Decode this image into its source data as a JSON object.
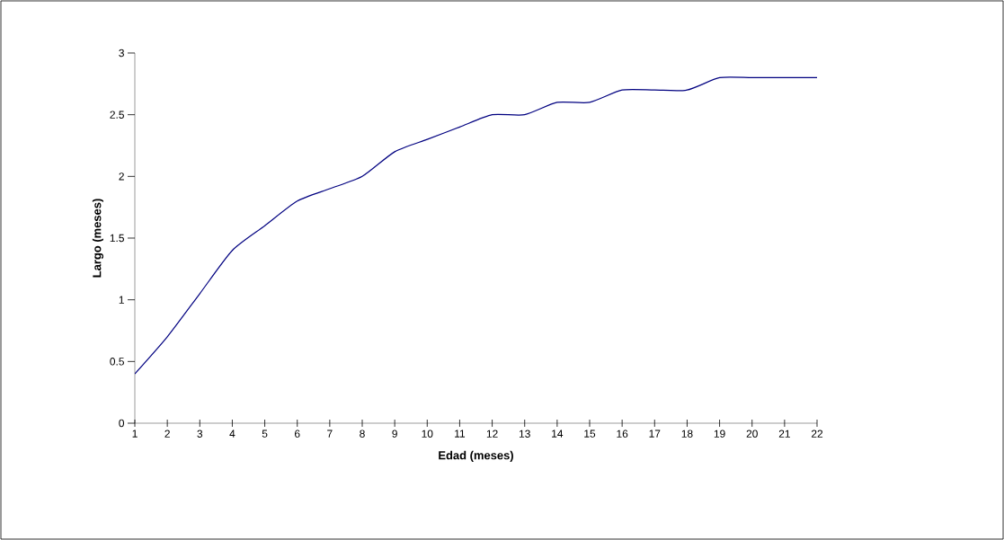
{
  "chart_data": {
    "type": "line",
    "xlabel": "Edad (meses)",
    "ylabel": "Largo (meses)",
    "categories": [
      "1",
      "2",
      "3",
      "4",
      "5",
      "6",
      "7",
      "8",
      "9",
      "10",
      "11",
      "12",
      "13",
      "14",
      "15",
      "16",
      "17",
      "18",
      "19",
      "20",
      "21",
      "22"
    ],
    "series": [
      {
        "color": "#000080",
        "values": [
          0.4,
          0.7,
          1.05,
          1.4,
          1.6,
          1.8,
          1.9,
          2.0,
          2.2,
          2.3,
          2.4,
          2.5,
          2.5,
          2.6,
          2.6,
          2.7,
          2.7,
          2.7,
          2.8,
          2.8,
          2.8,
          2.8
        ]
      }
    ],
    "ylim": [
      0,
      3
    ],
    "yticks": [
      0,
      0.5,
      1,
      1.5,
      2,
      2.5,
      3
    ],
    "grid": false,
    "marker": "none",
    "line_style": "solid"
  }
}
